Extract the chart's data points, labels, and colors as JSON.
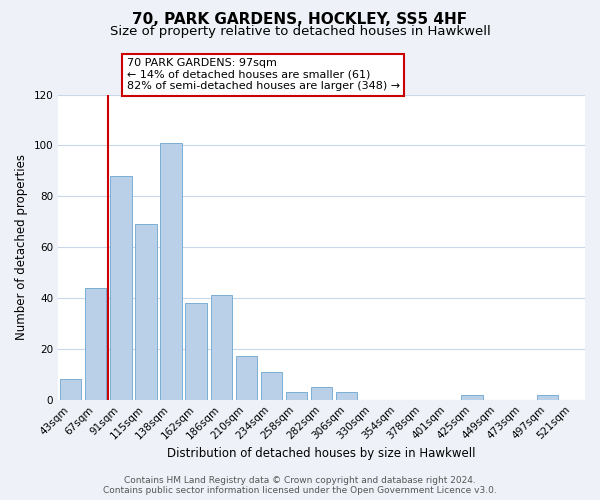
{
  "title": "70, PARK GARDENS, HOCKLEY, SS5 4HF",
  "subtitle": "Size of property relative to detached houses in Hawkwell",
  "xlabel": "Distribution of detached houses by size in Hawkwell",
  "ylabel": "Number of detached properties",
  "bar_labels": [
    "43sqm",
    "67sqm",
    "91sqm",
    "115sqm",
    "138sqm",
    "162sqm",
    "186sqm",
    "210sqm",
    "234sqm",
    "258sqm",
    "282sqm",
    "306sqm",
    "330sqm",
    "354sqm",
    "378sqm",
    "401sqm",
    "425sqm",
    "449sqm",
    "473sqm",
    "497sqm",
    "521sqm"
  ],
  "bar_heights": [
    8,
    44,
    88,
    69,
    101,
    38,
    41,
    17,
    11,
    3,
    5,
    3,
    0,
    0,
    0,
    0,
    2,
    0,
    0,
    2,
    0
  ],
  "bar_color": "#bad0e8",
  "bar_edge_color": "#7aafd4",
  "vline_x_index": 2,
  "vline_color": "#cc0000",
  "ylim": [
    0,
    120
  ],
  "yticks": [
    0,
    20,
    40,
    60,
    80,
    100,
    120
  ],
  "annotation_lines": [
    "70 PARK GARDENS: 97sqm",
    "← 14% of detached houses are smaller (61)",
    "82% of semi-detached houses are larger (348) →"
  ],
  "footer_line1": "Contains HM Land Registry data © Crown copyright and database right 2024.",
  "footer_line2": "Contains public sector information licensed under the Open Government Licence v3.0.",
  "bg_color": "#eef2f8",
  "plot_bg_color": "#ffffff",
  "grid_color": "#c8d8ea",
  "title_fontsize": 11,
  "subtitle_fontsize": 9.5,
  "axis_label_fontsize": 8.5,
  "tick_fontsize": 7.5,
  "footer_fontsize": 6.5
}
